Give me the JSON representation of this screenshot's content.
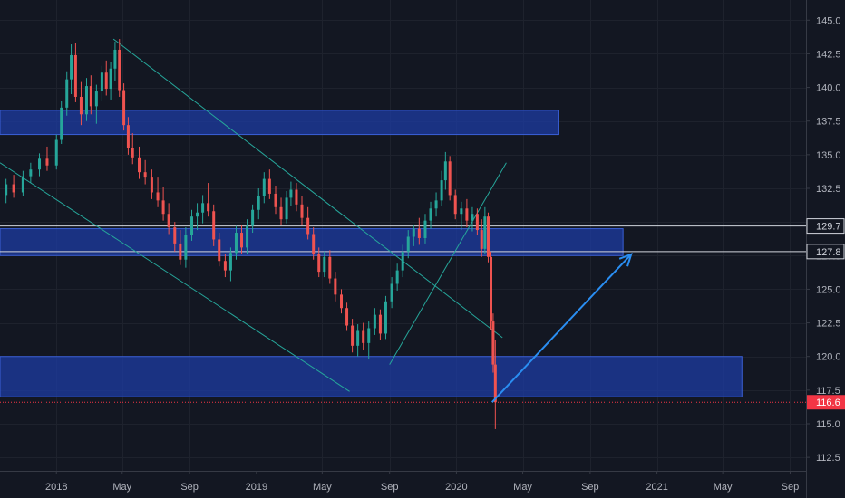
{
  "chart_data": {
    "type": "candlestick",
    "title": "",
    "x_axis": {
      "ticks": [
        {
          "label": "2018",
          "date": "2018-01-01"
        },
        {
          "label": "May",
          "date": "2018-05-01"
        },
        {
          "label": "Sep",
          "date": "2018-09-01"
        },
        {
          "label": "2019",
          "date": "2019-01-01"
        },
        {
          "label": "May",
          "date": "2019-05-01"
        },
        {
          "label": "Sep",
          "date": "2019-09-01"
        },
        {
          "label": "2020",
          "date": "2020-01-01"
        },
        {
          "label": "May",
          "date": "2020-05-01"
        },
        {
          "label": "Sep",
          "date": "2020-09-01"
        },
        {
          "label": "2021",
          "date": "2021-01-01"
        },
        {
          "label": "May",
          "date": "2021-05-01"
        },
        {
          "label": "Sep",
          "date": "2021-09-01"
        }
      ],
      "range": [
        "2017-09-20",
        "2021-09-30"
      ]
    },
    "y_axis": {
      "ticks": [
        "145.0",
        "142.5",
        "140.0",
        "137.5",
        "135.0",
        "132.5",
        "130.0",
        "127.5",
        "125.0",
        "122.5",
        "120.0",
        "117.5",
        "115.0",
        "112.5"
      ],
      "range": [
        111.5,
        146.5
      ]
    },
    "grid": true,
    "price_labels": [
      {
        "text": "129.7",
        "value": 129.7,
        "style": "outline",
        "color": "#d1d4dc"
      },
      {
        "text": "127.8",
        "value": 127.8,
        "style": "outline",
        "color": "#d1d4dc"
      },
      {
        "text": "116.6",
        "value": 116.6,
        "style": "filled",
        "color": "#f23645"
      }
    ],
    "zones": [
      {
        "from": "2017-09-20",
        "to": "2020-07-06",
        "top": 138.3,
        "bottom": 136.5
      },
      {
        "from": "2017-09-20",
        "to": "2020-10-31",
        "top": 129.5,
        "bottom": 127.5
      },
      {
        "from": "2017-09-20",
        "to": "2021-06-05",
        "top": 120.0,
        "bottom": 117.0
      }
    ],
    "horizontal_lines": [
      129.7,
      127.8
    ],
    "dotted_line": 116.6,
    "trendlines": [
      {
        "from": [
          "2018-04-15",
          143.6
        ],
        "to": [
          "2020-03-25",
          121.4
        ]
      },
      {
        "from": [
          "2017-09-20",
          134.4
        ],
        "to": [
          "2019-06-20",
          117.4
        ]
      },
      {
        "from": [
          "2019-09-01",
          119.4
        ],
        "to": [
          "2020-04-01",
          134.4
        ]
      }
    ],
    "arrow": {
      "from": [
        "2020-03-06",
        116.6
      ],
      "to": [
        "2020-11-15",
        127.6
      ],
      "color": "#2a8ef2"
    },
    "candles": [
      [
        "2017-10-01",
        132.0,
        133.2,
        131.4,
        132.8
      ],
      [
        "2017-10-15",
        132.8,
        133.5,
        131.8,
        132.2
      ],
      [
        "2017-11-01",
        132.2,
        133.8,
        131.9,
        133.4
      ],
      [
        "2017-11-15",
        133.4,
        134.4,
        132.9,
        133.9
      ],
      [
        "2017-12-01",
        133.9,
        135.1,
        133.4,
        134.7
      ],
      [
        "2017-12-15",
        134.7,
        135.6,
        133.8,
        134.2
      ],
      [
        "2018-01-01",
        134.2,
        136.5,
        133.9,
        136.1
      ],
      [
        "2018-01-10",
        136.1,
        139.0,
        135.8,
        138.5
      ],
      [
        "2018-01-20",
        138.5,
        141.2,
        137.9,
        140.6
      ],
      [
        "2018-01-28",
        140.6,
        143.2,
        139.5,
        142.4
      ],
      [
        "2018-02-05",
        142.4,
        143.3,
        138.9,
        139.3
      ],
      [
        "2018-02-15",
        139.3,
        140.4,
        137.2,
        138.0
      ],
      [
        "2018-02-25",
        138.0,
        140.7,
        137.5,
        140.1
      ],
      [
        "2018-03-05",
        140.1,
        140.9,
        138.0,
        138.6
      ],
      [
        "2018-03-15",
        138.6,
        140.2,
        137.3,
        139.7
      ],
      [
        "2018-03-25",
        139.7,
        141.6,
        139.0,
        141.1
      ],
      [
        "2018-04-02",
        141.1,
        142.0,
        139.4,
        139.9
      ],
      [
        "2018-04-10",
        139.9,
        141.9,
        139.1,
        141.4
      ],
      [
        "2018-04-18",
        141.4,
        143.4,
        140.5,
        142.8
      ],
      [
        "2018-04-26",
        142.8,
        143.6,
        139.3,
        139.8
      ],
      [
        "2018-05-04",
        139.8,
        140.3,
        136.8,
        137.2
      ],
      [
        "2018-05-12",
        137.2,
        137.8,
        135.0,
        135.5
      ],
      [
        "2018-05-20",
        135.5,
        136.6,
        134.3,
        134.8
      ],
      [
        "2018-06-01",
        134.8,
        135.6,
        133.2,
        133.7
      ],
      [
        "2018-06-12",
        133.7,
        134.6,
        132.8,
        133.3
      ],
      [
        "2018-06-24",
        133.3,
        133.9,
        131.7,
        132.2
      ],
      [
        "2018-07-05",
        132.2,
        133.3,
        131.1,
        131.6
      ],
      [
        "2018-07-15",
        131.6,
        132.6,
        130.1,
        130.6
      ],
      [
        "2018-07-25",
        130.6,
        131.4,
        129.1,
        129.6
      ],
      [
        "2018-08-05",
        129.6,
        130.0,
        127.8,
        128.4
      ],
      [
        "2018-08-15",
        128.4,
        129.4,
        126.8,
        127.2
      ],
      [
        "2018-08-25",
        127.2,
        129.6,
        126.6,
        129.0
      ],
      [
        "2018-09-05",
        129.0,
        130.9,
        128.6,
        130.4
      ],
      [
        "2018-09-15",
        130.4,
        131.4,
        129.4,
        130.7
      ],
      [
        "2018-09-25",
        130.7,
        132.0,
        129.9,
        131.4
      ],
      [
        "2018-10-05",
        131.4,
        132.9,
        130.4,
        130.8
      ],
      [
        "2018-10-15",
        130.8,
        131.3,
        128.2,
        128.7
      ],
      [
        "2018-10-25",
        128.7,
        129.2,
        126.7,
        127.1
      ],
      [
        "2018-11-05",
        127.1,
        127.6,
        125.9,
        126.4
      ],
      [
        "2018-11-15",
        126.4,
        128.1,
        125.6,
        127.7
      ],
      [
        "2018-11-25",
        127.7,
        129.7,
        127.2,
        129.2
      ],
      [
        "2018-12-05",
        129.2,
        129.8,
        127.6,
        128.1
      ],
      [
        "2018-12-15",
        128.1,
        130.2,
        127.6,
        129.7
      ],
      [
        "2018-12-25",
        129.7,
        131.3,
        129.2,
        130.9
      ],
      [
        "2019-01-05",
        130.9,
        132.5,
        130.2,
        131.9
      ],
      [
        "2019-01-15",
        131.9,
        133.7,
        131.4,
        133.2
      ],
      [
        "2019-01-25",
        133.2,
        133.9,
        131.7,
        132.1
      ],
      [
        "2019-02-05",
        132.1,
        132.7,
        130.6,
        131.1
      ],
      [
        "2019-02-15",
        131.1,
        131.8,
        129.8,
        130.2
      ],
      [
        "2019-02-25",
        130.2,
        132.3,
        129.9,
        131.8
      ],
      [
        "2019-03-05",
        131.8,
        133.0,
        131.2,
        132.4
      ],
      [
        "2019-03-15",
        132.4,
        132.9,
        130.8,
        131.3
      ],
      [
        "2019-03-25",
        131.3,
        131.9,
        129.8,
        130.3
      ],
      [
        "2019-04-05",
        130.3,
        131.1,
        128.7,
        129.1
      ],
      [
        "2019-04-15",
        129.1,
        129.6,
        127.2,
        127.6
      ],
      [
        "2019-04-25",
        127.6,
        128.1,
        125.9,
        126.3
      ],
      [
        "2019-05-05",
        126.3,
        127.8,
        125.9,
        127.4
      ],
      [
        "2019-05-15",
        127.4,
        127.9,
        125.4,
        125.8
      ],
      [
        "2019-05-25",
        125.8,
        126.3,
        124.1,
        124.6
      ],
      [
        "2019-06-05",
        124.6,
        125.0,
        123.2,
        123.6
      ],
      [
        "2019-06-15",
        123.6,
        124.0,
        121.9,
        122.3
      ],
      [
        "2019-06-25",
        122.3,
        122.8,
        120.3,
        120.8
      ],
      [
        "2019-07-05",
        120.8,
        122.4,
        120.0,
        121.9
      ],
      [
        "2019-07-15",
        121.9,
        122.5,
        120.5,
        121.0
      ],
      [
        "2019-07-25",
        121.0,
        122.6,
        119.8,
        122.1
      ],
      [
        "2019-08-05",
        122.1,
        123.6,
        121.6,
        123.1
      ],
      [
        "2019-08-15",
        123.1,
        123.5,
        121.2,
        121.7
      ],
      [
        "2019-08-25",
        121.7,
        124.5,
        121.3,
        124.1
      ],
      [
        "2019-09-05",
        124.1,
        125.9,
        123.6,
        125.4
      ],
      [
        "2019-09-15",
        125.4,
        126.9,
        124.9,
        126.4
      ],
      [
        "2019-09-25",
        126.4,
        128.3,
        125.9,
        127.8
      ],
      [
        "2019-10-05",
        127.8,
        129.4,
        127.3,
        128.9
      ],
      [
        "2019-10-15",
        128.9,
        129.8,
        128.2,
        129.5
      ],
      [
        "2019-10-25",
        129.5,
        130.3,
        128.3,
        128.8
      ],
      [
        "2019-11-05",
        128.8,
        130.6,
        128.4,
        130.1
      ],
      [
        "2019-11-15",
        130.1,
        131.5,
        129.5,
        131.0
      ],
      [
        "2019-11-25",
        131.0,
        132.2,
        130.4,
        131.6
      ],
      [
        "2019-12-05",
        131.6,
        133.8,
        131.2,
        133.1
      ],
      [
        "2019-12-12",
        133.1,
        135.2,
        132.4,
        134.5
      ],
      [
        "2019-12-20",
        134.5,
        134.9,
        131.6,
        132.0
      ],
      [
        "2019-12-30",
        132.0,
        132.4,
        130.2,
        130.6
      ],
      [
        "2020-01-10",
        130.6,
        131.5,
        129.4,
        131.0
      ],
      [
        "2020-01-20",
        131.0,
        131.7,
        129.6,
        130.1
      ],
      [
        "2020-01-30",
        130.1,
        131.1,
        129.3,
        130.6
      ],
      [
        "2020-02-08",
        130.6,
        131.0,
        129.0,
        129.4
      ],
      [
        "2020-02-16",
        129.4,
        130.2,
        127.4,
        128.0
      ],
      [
        "2020-02-22",
        128.0,
        131.1,
        127.6,
        130.4
      ],
      [
        "2020-02-28",
        130.4,
        130.7,
        127.0,
        127.4
      ],
      [
        "2020-03-04",
        127.4,
        127.8,
        122.0,
        122.6
      ],
      [
        "2020-03-08",
        122.6,
        123.2,
        118.8,
        119.4
      ],
      [
        "2020-03-12",
        119.4,
        121.2,
        114.6,
        116.6
      ]
    ]
  }
}
